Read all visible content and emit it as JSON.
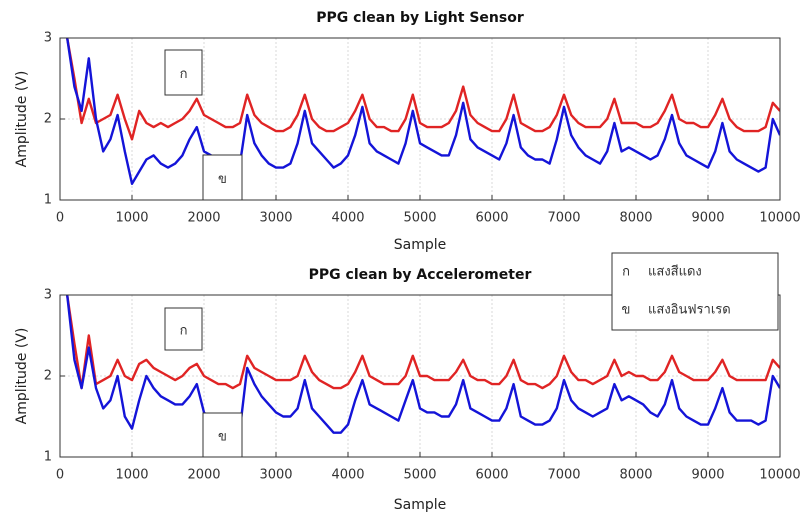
{
  "chart_data": [
    {
      "type": "line",
      "title": "PPG clean by Light Sensor",
      "xlabel": "Sample",
      "ylabel": "Amplitude (V)",
      "xlim": [
        0,
        10000
      ],
      "ylim": [
        1,
        3
      ],
      "xticks": [
        0,
        1000,
        2000,
        3000,
        4000,
        5000,
        6000,
        7000,
        8000,
        9000,
        10000
      ],
      "yticks": [
        1,
        2,
        3
      ],
      "grid": true,
      "annotations": [
        "ก",
        "ข"
      ],
      "x": [
        100,
        200,
        300,
        400,
        500,
        600,
        700,
        800,
        900,
        1000,
        1100,
        1200,
        1300,
        1400,
        1500,
        1600,
        1700,
        1800,
        1900,
        2000,
        2100,
        2200,
        2300,
        2400,
        2500,
        2600,
        2700,
        2800,
        2900,
        3000,
        3100,
        3200,
        3300,
        3400,
        3500,
        3600,
        3700,
        3800,
        3900,
        4000,
        4100,
        4200,
        4300,
        4400,
        4500,
        4600,
        4700,
        4800,
        4900,
        5000,
        5100,
        5200,
        5300,
        5400,
        5500,
        5600,
        5700,
        5800,
        5900,
        6000,
        6100,
        6200,
        6300,
        6400,
        6500,
        6600,
        6700,
        6800,
        6900,
        7000,
        7100,
        7200,
        7300,
        7400,
        7500,
        7600,
        7700,
        7800,
        7900,
        8000,
        8100,
        8200,
        8300,
        8400,
        8500,
        8600,
        8700,
        8800,
        8900,
        9000,
        9100,
        9200,
        9300,
        9400,
        9500,
        9600,
        9700,
        9800,
        9900,
        10000
      ],
      "series": [
        {
          "color": "#e02424",
          "values": [
            3,
            2.5,
            1.95,
            2.25,
            1.95,
            2.0,
            2.05,
            2.3,
            2.0,
            1.75,
            2.1,
            1.95,
            1.9,
            1.95,
            1.9,
            1.95,
            2.0,
            2.1,
            2.25,
            2.05,
            2.0,
            1.95,
            1.9,
            1.9,
            1.95,
            2.3,
            2.05,
            1.95,
            1.9,
            1.85,
            1.85,
            1.9,
            2.05,
            2.3,
            2.0,
            1.9,
            1.85,
            1.85,
            1.9,
            1.95,
            2.1,
            2.3,
            2.0,
            1.9,
            1.9,
            1.85,
            1.85,
            2.0,
            2.3,
            1.95,
            1.9,
            1.9,
            1.9,
            1.95,
            2.1,
            2.4,
            2.05,
            1.95,
            1.9,
            1.85,
            1.85,
            2.0,
            2.3,
            1.95,
            1.9,
            1.85,
            1.85,
            1.9,
            2.05,
            2.3,
            2.05,
            1.95,
            1.9,
            1.9,
            1.9,
            2.0,
            2.25,
            1.95,
            1.95,
            1.95,
            1.9,
            1.9,
            1.95,
            2.1,
            2.3,
            2.0,
            1.95,
            1.95,
            1.9,
            1.9,
            2.05,
            2.25,
            2.0,
            1.9,
            1.85,
            1.85,
            1.85,
            1.9,
            2.2,
            2.1
          ]
        },
        {
          "color": "#1414d8",
          "values": [
            3,
            2.4,
            2.1,
            2.75,
            2.0,
            1.6,
            1.75,
            2.05,
            1.6,
            1.2,
            1.35,
            1.5,
            1.55,
            1.45,
            1.4,
            1.45,
            1.55,
            1.75,
            1.9,
            1.6,
            1.55,
            1.5,
            1.5,
            1.45,
            1.45,
            2.05,
            1.7,
            1.55,
            1.45,
            1.4,
            1.4,
            1.45,
            1.7,
            2.1,
            1.7,
            1.6,
            1.5,
            1.4,
            1.45,
            1.55,
            1.8,
            2.15,
            1.7,
            1.6,
            1.55,
            1.5,
            1.45,
            1.7,
            2.1,
            1.7,
            1.65,
            1.6,
            1.55,
            1.55,
            1.8,
            2.2,
            1.75,
            1.65,
            1.6,
            1.55,
            1.5,
            1.7,
            2.05,
            1.65,
            1.55,
            1.5,
            1.5,
            1.45,
            1.75,
            2.15,
            1.8,
            1.65,
            1.55,
            1.5,
            1.45,
            1.6,
            1.95,
            1.6,
            1.65,
            1.6,
            1.55,
            1.5,
            1.55,
            1.75,
            2.05,
            1.7,
            1.55,
            1.5,
            1.45,
            1.4,
            1.6,
            1.95,
            1.6,
            1.5,
            1.45,
            1.4,
            1.35,
            1.4,
            2.0,
            1.8
          ]
        }
      ]
    },
    {
      "type": "line",
      "title": "PPG clean by Accelerometer",
      "xlabel": "Sample",
      "ylabel": "Amplitude (V)",
      "xlim": [
        0,
        10000
      ],
      "ylim": [
        1,
        3
      ],
      "xticks": [
        0,
        1000,
        2000,
        3000,
        4000,
        5000,
        6000,
        7000,
        8000,
        9000,
        10000
      ],
      "yticks": [
        1,
        2,
        3
      ],
      "grid": true,
      "annotations": [
        "ก",
        "ข"
      ],
      "legend": "upper right",
      "x": [
        100,
        200,
        300,
        400,
        500,
        600,
        700,
        800,
        900,
        1000,
        1100,
        1200,
        1300,
        1400,
        1500,
        1600,
        1700,
        1800,
        1900,
        2000,
        2100,
        2200,
        2300,
        2400,
        2500,
        2600,
        2700,
        2800,
        2900,
        3000,
        3100,
        3200,
        3300,
        3400,
        3500,
        3600,
        3700,
        3800,
        3900,
        4000,
        4100,
        4200,
        4300,
        4400,
        4500,
        4600,
        4700,
        4800,
        4900,
        5000,
        5100,
        5200,
        5300,
        5400,
        5500,
        5600,
        5700,
        5800,
        5900,
        6000,
        6100,
        6200,
        6300,
        6400,
        6500,
        6600,
        6700,
        6800,
        6900,
        7000,
        7100,
        7200,
        7300,
        7400,
        7500,
        7600,
        7700,
        7800,
        7900,
        8000,
        8100,
        8200,
        8300,
        8400,
        8500,
        8600,
        8700,
        8800,
        8900,
        9000,
        9100,
        9200,
        9300,
        9400,
        9500,
        9600,
        9700,
        9800,
        9900,
        10000
      ],
      "series": [
        {
          "name": "แสงสีแดง",
          "key": "ก",
          "color": "#e02424",
          "values": [
            3,
            2.4,
            1.85,
            2.5,
            1.9,
            1.95,
            2.0,
            2.2,
            2.0,
            1.95,
            2.15,
            2.2,
            2.1,
            2.05,
            2.0,
            1.95,
            2.0,
            2.1,
            2.15,
            2.0,
            1.95,
            1.9,
            1.9,
            1.85,
            1.9,
            2.25,
            2.1,
            2.05,
            2.0,
            1.95,
            1.95,
            1.95,
            2.0,
            2.25,
            2.05,
            1.95,
            1.9,
            1.85,
            1.85,
            1.9,
            2.05,
            2.25,
            2.0,
            1.95,
            1.9,
            1.9,
            1.9,
            2.0,
            2.25,
            2.0,
            2.0,
            1.95,
            1.95,
            1.95,
            2.05,
            2.2,
            2.0,
            1.95,
            1.95,
            1.9,
            1.9,
            2.0,
            2.2,
            1.95,
            1.9,
            1.9,
            1.85,
            1.9,
            2.0,
            2.25,
            2.05,
            1.95,
            1.95,
            1.9,
            1.95,
            2.0,
            2.2,
            2.0,
            2.05,
            2.0,
            2.0,
            1.95,
            1.95,
            2.05,
            2.25,
            2.05,
            2.0,
            1.95,
            1.95,
            1.95,
            2.05,
            2.2,
            2.0,
            1.95,
            1.95,
            1.95,
            1.95,
            1.95,
            2.2,
            2.1
          ]
        },
        {
          "name": "แสงอินฟราเรด",
          "key": "ข",
          "color": "#1414d8",
          "values": [
            3,
            2.2,
            1.85,
            2.35,
            1.85,
            1.6,
            1.7,
            2.0,
            1.5,
            1.35,
            1.7,
            2.0,
            1.85,
            1.75,
            1.7,
            1.65,
            1.65,
            1.75,
            1.9,
            1.55,
            1.45,
            1.4,
            1.4,
            1.35,
            1.35,
            2.1,
            1.9,
            1.75,
            1.65,
            1.55,
            1.5,
            1.5,
            1.6,
            1.95,
            1.6,
            1.5,
            1.4,
            1.3,
            1.3,
            1.4,
            1.7,
            1.95,
            1.65,
            1.6,
            1.55,
            1.5,
            1.45,
            1.7,
            1.95,
            1.6,
            1.55,
            1.55,
            1.5,
            1.5,
            1.65,
            1.95,
            1.6,
            1.55,
            1.5,
            1.45,
            1.45,
            1.6,
            1.9,
            1.5,
            1.45,
            1.4,
            1.4,
            1.45,
            1.6,
            1.95,
            1.7,
            1.6,
            1.55,
            1.5,
            1.55,
            1.6,
            1.9,
            1.7,
            1.75,
            1.7,
            1.65,
            1.55,
            1.5,
            1.65,
            1.95,
            1.6,
            1.5,
            1.45,
            1.4,
            1.4,
            1.6,
            1.85,
            1.55,
            1.45,
            1.45,
            1.45,
            1.4,
            1.45,
            2.0,
            1.85
          ]
        }
      ]
    }
  ]
}
